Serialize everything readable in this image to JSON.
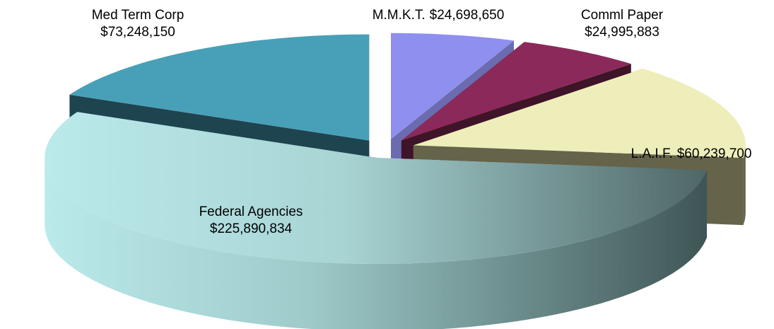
{
  "chart_data": {
    "type": "pie",
    "categories": [
      "M.M.K.T.",
      "Comml Paper",
      "L.A.I.F.",
      "Federal Agencies",
      "Med Term Corp"
    ],
    "values": [
      24698650,
      24995883,
      60239700,
      225890834,
      73248150
    ],
    "value_labels": [
      "$24,698,650",
      "$24,995,883",
      "$60,239,700",
      "$225,890,834",
      "$73,248,150"
    ],
    "colors": [
      "#8f8fef",
      "#8b2a5a",
      "#eeeebb",
      "#bbeaea",
      "#48a0b8"
    ],
    "side_colors": [
      "#6b6bb0",
      "#3e1428",
      "#65634a",
      "#4f6666",
      "#1e4450"
    ]
  }
}
